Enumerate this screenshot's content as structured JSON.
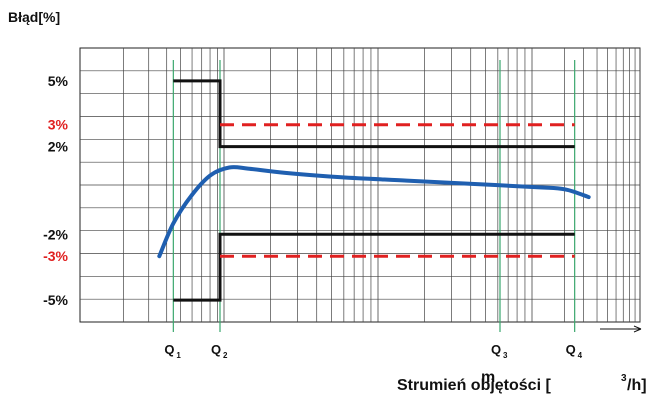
{
  "chart_data": {
    "type": "line",
    "ylabel": "Błąd[%]",
    "xlabel_main": "Strumień objętości [",
    "xlabel_sup": "3",
    "xlabel_tail": "/h]",
    "xlabel_overlay": "m",
    "y_ticks": [
      {
        "label": "5%",
        "value": 5,
        "color": "#111111"
      },
      {
        "label": "3%",
        "value": 3,
        "color": "#e02020"
      },
      {
        "label": "2%",
        "value": 2,
        "color": "#111111"
      },
      {
        "label": "-2%",
        "value": -2,
        "color": "#111111"
      },
      {
        "label": "-3%",
        "value": -3,
        "color": "#e02020"
      },
      {
        "label": "-5%",
        "value": -5,
        "color": "#111111"
      }
    ],
    "ylim": [
      -6,
      6.5
    ],
    "x_markers": [
      {
        "main": "Q",
        "sub": "1",
        "x": 1.0
      },
      {
        "main": "Q",
        "sub": "2",
        "x": 1.5
      },
      {
        "main": "Q",
        "sub": "3",
        "x": 4.5
      },
      {
        "main": "Q",
        "sub": "4",
        "x": 5.3
      }
    ],
    "xlim": [
      0,
      6
    ],
    "series": [
      {
        "role": "error_curve",
        "color": "#1f5fb0",
        "points": [
          [
            0.85,
            -3.0
          ],
          [
            1.0,
            -1.5
          ],
          [
            1.2,
            -0.2
          ],
          [
            1.4,
            0.7
          ],
          [
            1.6,
            1.05
          ],
          [
            1.8,
            1.0
          ],
          [
            2.2,
            0.8
          ],
          [
            2.8,
            0.6
          ],
          [
            3.5,
            0.45
          ],
          [
            4.2,
            0.3
          ],
          [
            4.9,
            0.15
          ],
          [
            5.2,
            0.05
          ],
          [
            5.45,
            -0.3
          ]
        ]
      },
      {
        "role": "mpe_flow",
        "color": "#111111",
        "upper": [
          [
            1.0,
            5
          ],
          [
            1.5,
            5
          ],
          [
            1.5,
            2
          ],
          [
            5.3,
            2
          ]
        ],
        "lower": [
          [
            1.0,
            -5
          ],
          [
            1.5,
            -5
          ],
          [
            1.5,
            -2
          ],
          [
            5.3,
            -2
          ]
        ]
      },
      {
        "role": "mpe_dashed",
        "color": "#e02020",
        "upper": [
          [
            1.5,
            3
          ],
          [
            5.3,
            3
          ]
        ],
        "lower": [
          [
            1.5,
            -3
          ],
          [
            5.3,
            -3
          ]
        ]
      }
    ],
    "grid": true
  }
}
